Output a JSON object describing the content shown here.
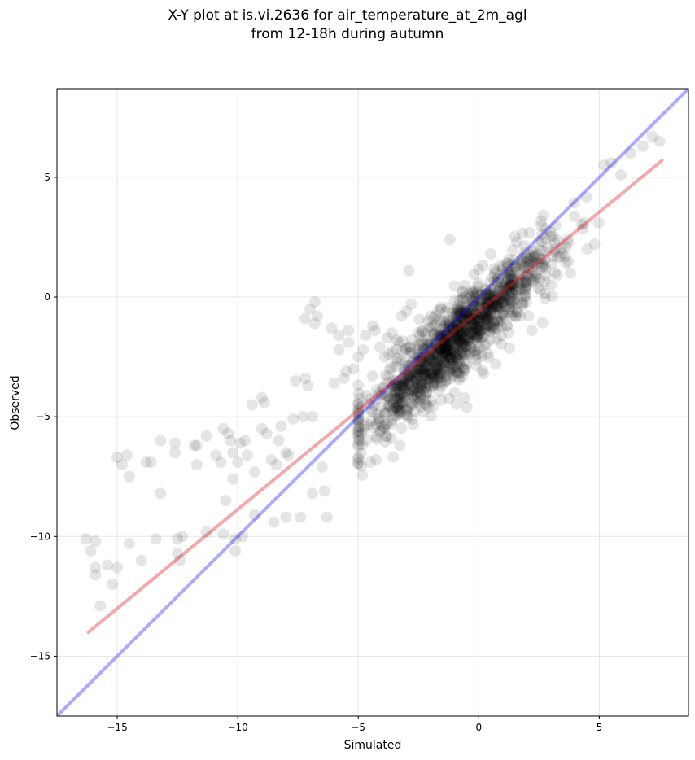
{
  "chart_data": {
    "type": "scatter",
    "title_line1": "X-Y plot at is.vi.2636 for air_temperature_at_2m_agl",
    "title_line2": "from 12-18h during autumn",
    "xlabel": "Simulated",
    "ylabel": "Observed",
    "xlim": [
      -17.5,
      8.7
    ],
    "ylim": [
      -17.5,
      8.7
    ],
    "xticks": [
      -15,
      -10,
      -5,
      0,
      5
    ],
    "yticks": [
      -15,
      -10,
      -5,
      0,
      5
    ],
    "grid": true,
    "point_color": "#000000",
    "point_opacity": 0.1,
    "identity_line": {
      "color": "#0000ff",
      "opacity": 0.33,
      "x": [
        -17.5,
        8.7
      ],
      "y": [
        -17.5,
        8.7
      ]
    },
    "fit_line": {
      "color": "#e41a1c",
      "opacity": 0.38,
      "x": [
        -16.2,
        7.6
      ],
      "y": [
        -14.0,
        5.7
      ]
    },
    "sparse_points": [
      [
        -16.3,
        -10.1
      ],
      [
        -16.1,
        -10.6
      ],
      [
        -15.9,
        -10.2
      ],
      [
        -15.9,
        -11.3
      ],
      [
        -15.9,
        -11.6
      ],
      [
        -15.7,
        -12.9
      ],
      [
        -15.4,
        -11.2
      ],
      [
        -15.2,
        -12.0
      ],
      [
        -15.0,
        -11.3
      ],
      [
        -15.0,
        -6.7
      ],
      [
        -14.8,
        -7.0
      ],
      [
        -14.6,
        -6.6
      ],
      [
        -14.5,
        -10.3
      ],
      [
        -14.5,
        -7.5
      ],
      [
        -14.0,
        -11.0
      ],
      [
        -13.8,
        -6.9
      ],
      [
        -13.6,
        -6.9
      ],
      [
        -13.4,
        -10.1
      ],
      [
        -13.2,
        -8.2
      ],
      [
        -13.2,
        -6.0
      ],
      [
        -12.6,
        -6.1
      ],
      [
        -12.6,
        -6.5
      ],
      [
        -12.5,
        -10.1
      ],
      [
        -12.5,
        -10.7
      ],
      [
        -12.4,
        -11.0
      ],
      [
        -12.3,
        -10.0
      ],
      [
        -11.8,
        -6.2
      ],
      [
        -11.7,
        -6.2
      ],
      [
        -11.7,
        -7.0
      ],
      [
        -11.3,
        -5.8
      ],
      [
        -11.3,
        -9.8
      ],
      [
        -10.9,
        -6.6
      ],
      [
        -10.7,
        -6.9
      ],
      [
        -10.6,
        -9.9
      ],
      [
        -10.6,
        -5.5
      ],
      [
        -10.5,
        -8.5
      ],
      [
        -10.4,
        -5.7
      ],
      [
        -10.3,
        -6.0
      ],
      [
        -10.2,
        -6.5
      ],
      [
        -10.2,
        -7.6
      ],
      [
        -10.1,
        -10.1
      ],
      [
        -10.1,
        -10.6
      ],
      [
        -10.0,
        -6.9
      ],
      [
        -9.9,
        -6.1
      ],
      [
        -9.8,
        -10.0
      ],
      [
        -9.7,
        -6.0
      ],
      [
        -9.6,
        -6.6
      ],
      [
        -9.4,
        -4.5
      ],
      [
        -9.3,
        -9.1
      ],
      [
        -9.3,
        -7.3
      ],
      [
        -9.0,
        -5.5
      ],
      [
        -9.0,
        -4.2
      ],
      [
        -8.9,
        -4.4
      ],
      [
        -8.8,
        -5.7
      ],
      [
        -8.6,
        -6.8
      ],
      [
        -8.5,
        -9.4
      ],
      [
        -8.4,
        -7.0
      ],
      [
        -8.3,
        -6.0
      ],
      [
        -8.2,
        -5.4
      ],
      [
        -8.0,
        -9.2
      ],
      [
        -8.0,
        -6.5
      ],
      [
        -7.9,
        -6.6
      ],
      [
        -7.7,
        -5.1
      ],
      [
        -7.6,
        -3.5
      ],
      [
        -7.4,
        -9.2
      ],
      [
        -7.3,
        -5.0
      ],
      [
        -7.2,
        -3.4
      ],
      [
        -7.2,
        -0.9
      ],
      [
        -7.1,
        -3.7
      ],
      [
        -7.0,
        -0.5
      ],
      [
        -6.9,
        -5.0
      ],
      [
        -6.9,
        -8.2
      ],
      [
        -6.8,
        -0.2
      ],
      [
        -6.8,
        -1.1
      ],
      [
        -6.7,
        -0.8
      ],
      [
        -6.5,
        -7.1
      ],
      [
        -6.4,
        -8.1
      ],
      [
        -6.3,
        -9.2
      ],
      [
        -6.1,
        -1.3
      ],
      [
        -6.0,
        -3.6
      ],
      [
        -5.8,
        -2.2
      ],
      [
        -5.8,
        -1.6
      ],
      [
        -5.6,
        -3.4
      ],
      [
        -5.5,
        -3.1
      ],
      [
        -5.4,
        -1.4
      ],
      [
        -5.4,
        -1.9
      ],
      [
        -5.2,
        -3.0
      ],
      [
        -5.0,
        -2.5
      ],
      [
        -4.9,
        -4.6
      ],
      [
        -4.8,
        -2.2
      ],
      [
        -4.7,
        -1.6
      ],
      [
        -4.5,
        -6.9
      ],
      [
        -4.4,
        -1.2
      ],
      [
        -4.3,
        -1.4
      ],
      [
        -4.1,
        -2.1
      ],
      [
        -3.9,
        -2.5
      ],
      [
        -3.8,
        -1.7
      ],
      [
        -3.6,
        -1.5
      ],
      [
        -3.4,
        -1.8
      ],
      [
        -3.2,
        -0.8
      ],
      [
        -3.0,
        -0.6
      ],
      [
        -2.9,
        1.1
      ],
      [
        -2.8,
        -0.3
      ],
      [
        -2.7,
        -2.4
      ],
      [
        -2.5,
        -1.5
      ],
      [
        -2.3,
        -4.8
      ],
      [
        -2.2,
        -4.3
      ],
      [
        -2.0,
        -0.8
      ],
      [
        -1.9,
        -1.2
      ],
      [
        -1.2,
        2.4
      ],
      [
        -1.0,
        -4.0
      ],
      [
        -0.6,
        -3.0
      ],
      [
        -0.5,
        -4.6
      ],
      [
        -0.6,
        -4.2
      ],
      [
        0.2,
        -3.2
      ],
      [
        0.5,
        1.8
      ],
      [
        0.7,
        -2.8
      ],
      [
        1.5,
        -0.8
      ],
      [
        2.0,
        0.9
      ],
      [
        2.2,
        -1.4
      ],
      [
        3.0,
        0.5
      ],
      [
        3.8,
        1.0
      ],
      [
        4.5,
        2.0
      ],
      [
        4.8,
        2.2
      ],
      [
        5.2,
        5.5
      ],
      [
        5.5,
        5.6
      ],
      [
        5.9,
        5.1
      ],
      [
        6.3,
        6.0
      ],
      [
        6.8,
        6.3
      ],
      [
        7.2,
        6.7
      ],
      [
        7.5,
        6.5
      ]
    ],
    "dense_cluster": {
      "count": 1250,
      "x_range": [
        -5.0,
        5.5
      ],
      "center_slope": 0.93,
      "center_offset": -0.9,
      "spread": 0.75,
      "seed": 2636
    }
  }
}
